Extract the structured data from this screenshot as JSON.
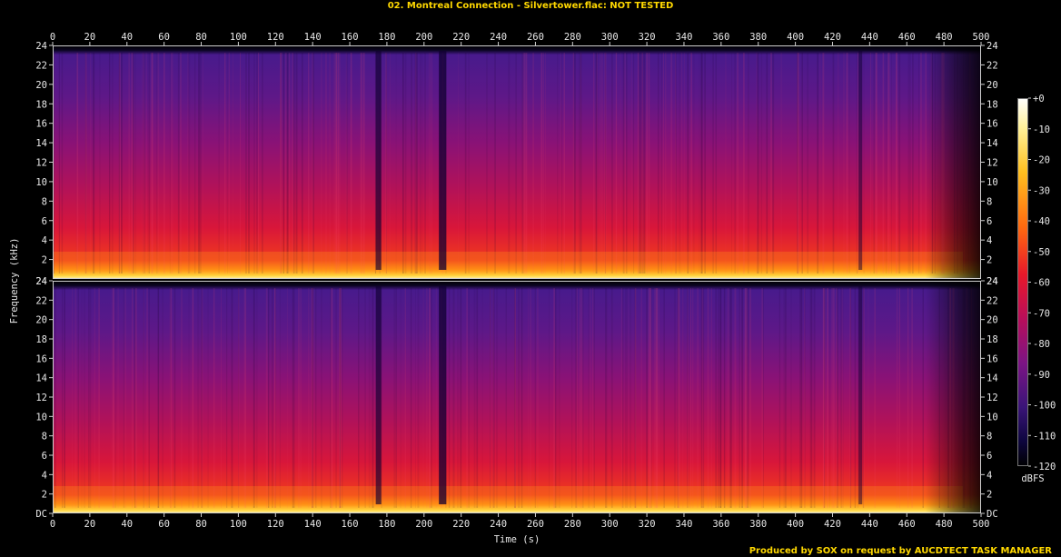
{
  "title": "02. Montreal Connection - Silvertower.flac: NOT TESTED",
  "footer": "Produced by SOX on request by AUCDTECT TASK MANAGER",
  "colors": {
    "title": "#ffd800",
    "background": "#000000",
    "axis": "#e8e8e8"
  },
  "chart_data": {
    "type": "heatmap",
    "title": "02. Montreal Connection - Silvertower.flac: NOT TESTED",
    "xlabel": "Time (s)",
    "ylabel": "Frequency (kHz)",
    "xlim": [
      0,
      500
    ],
    "x_ticks": [
      "0",
      "20",
      "40",
      "60",
      "80",
      "100",
      "120",
      "140",
      "160",
      "180",
      "200",
      "220",
      "240",
      "260",
      "280",
      "300",
      "320",
      "340",
      "360",
      "380",
      "400",
      "420",
      "440",
      "460",
      "480",
      "500"
    ],
    "ylim": [
      0,
      24
    ],
    "y_ticks": [
      "DC",
      "2",
      "4",
      "6",
      "8",
      "10",
      "12",
      "14",
      "16",
      "18",
      "20",
      "22",
      "24"
    ],
    "channels": 2,
    "colorbar": {
      "label": "dBFS",
      "ticks": [
        "+0",
        "-10",
        "-20",
        "-30",
        "-40",
        "-50",
        "-60",
        "-70",
        "-80",
        "-90",
        "-100",
        "-110",
        "-120"
      ],
      "range": [
        -120,
        0
      ]
    }
  }
}
